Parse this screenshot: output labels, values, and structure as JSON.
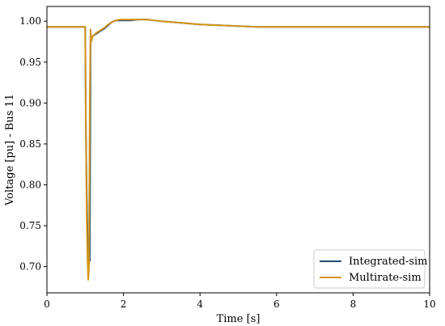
{
  "chart_data": {
    "type": "line",
    "xlabel": "Time [s]",
    "ylabel": "Voltage [pu] - Bus 11",
    "xlim": [
      0,
      10
    ],
    "ylim": [
      0.668,
      1.018
    ],
    "xticks": [
      "0",
      "2",
      "4",
      "6",
      "8",
      "10"
    ],
    "yticks": [
      "0.70",
      "0.75",
      "0.80",
      "0.85",
      "0.90",
      "0.95",
      "1.00"
    ],
    "grid": false,
    "legend_position": "lower-right",
    "series": [
      {
        "name": "Integrated-sim",
        "color": "#1f4e79",
        "x": [
          0,
          0.99,
          1.0,
          1.02,
          1.04,
          1.06,
          1.08,
          1.1,
          1.12,
          1.14,
          1.16,
          1.2,
          1.3,
          1.4,
          1.5,
          1.6,
          1.7,
          1.8,
          1.9,
          2.0,
          2.2,
          2.4,
          2.6,
          2.8,
          3.0,
          3.5,
          4.0,
          4.5,
          5.0,
          5.5,
          6.0,
          7.0,
          8.0,
          9.0,
          10.0
        ],
        "y": [
          0.993,
          0.993,
          0.993,
          0.86,
          0.79,
          0.74,
          0.72,
          0.71,
          0.707,
          0.975,
          0.978,
          0.982,
          0.985,
          0.988,
          0.991,
          0.995,
          0.999,
          1.001,
          1.001,
          1.001,
          1.001,
          1.002,
          1.002,
          1.001,
          1.0,
          0.998,
          0.996,
          0.995,
          0.994,
          0.993,
          0.993,
          0.993,
          0.993,
          0.993,
          0.993
        ]
      },
      {
        "name": "Multirate-sim",
        "color": "#d4951a",
        "x": [
          0,
          0.99,
          1.0,
          1.02,
          1.04,
          1.06,
          1.08,
          1.1,
          1.12,
          1.14,
          1.16,
          1.18,
          1.2,
          1.3,
          1.4,
          1.5,
          1.6,
          1.7,
          1.8,
          1.9,
          2.0,
          2.2,
          2.4,
          2.6,
          2.8,
          3.0,
          3.5,
          4.0,
          4.5,
          5.0,
          5.5,
          6.0,
          7.0,
          8.0,
          9.0,
          10.0
        ],
        "y": [
          0.993,
          0.993,
          0.993,
          0.85,
          0.76,
          0.71,
          0.684,
          0.7,
          0.91,
          0.99,
          0.975,
          0.979,
          0.982,
          0.986,
          0.989,
          0.992,
          0.996,
          0.999,
          1.001,
          1.002,
          1.002,
          1.002,
          1.002,
          1.002,
          1.001,
          1.0,
          0.998,
          0.996,
          0.995,
          0.994,
          0.993,
          0.993,
          0.993,
          0.993,
          0.993,
          0.993
        ]
      }
    ]
  }
}
